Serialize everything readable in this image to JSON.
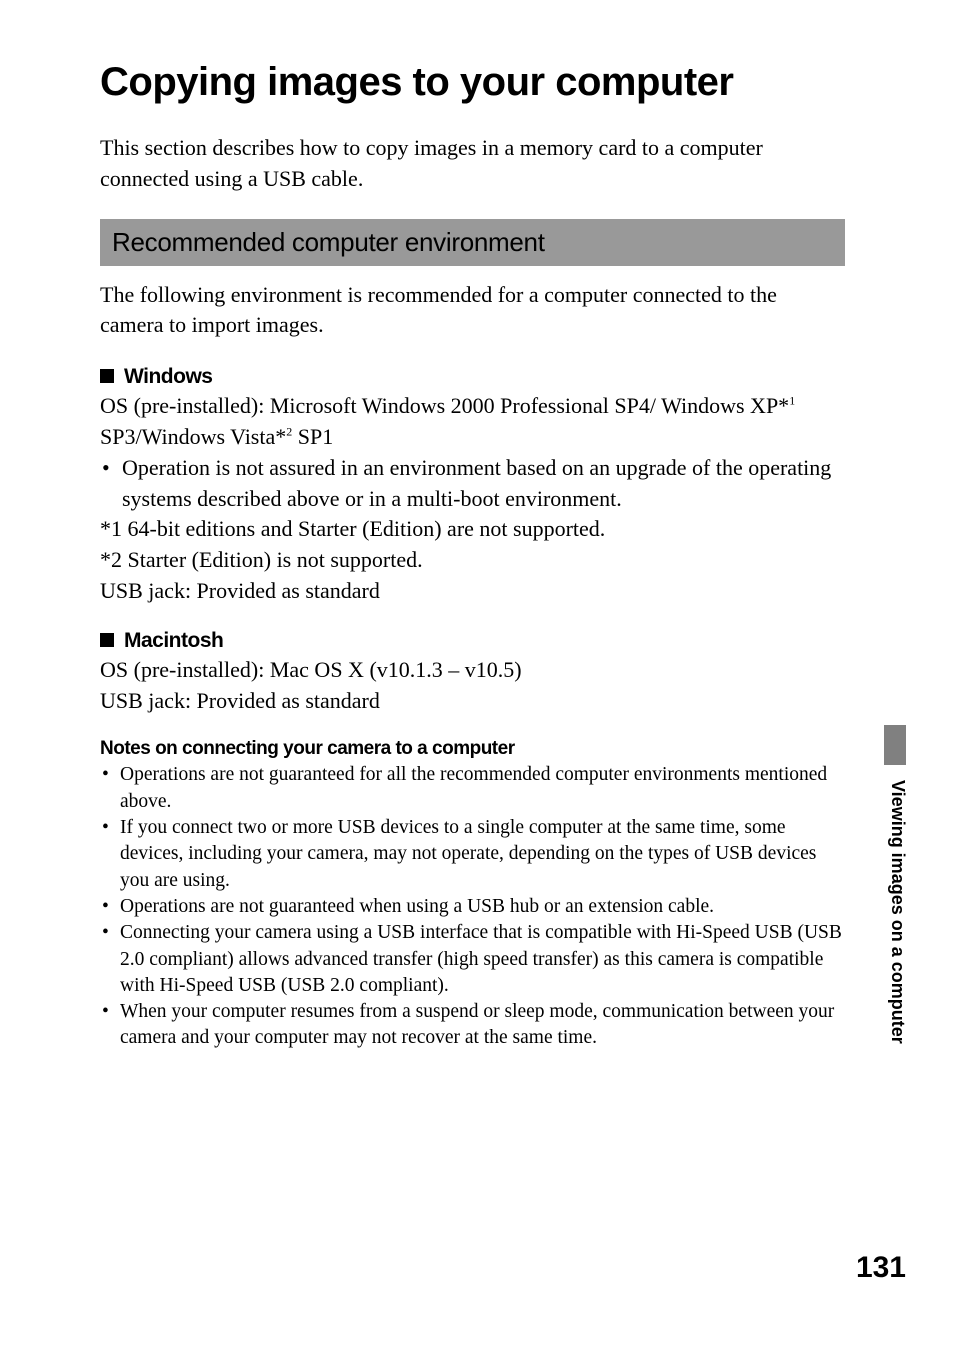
{
  "page": {
    "title": "Copying images to your computer",
    "intro": "This section describes how to copy images in a memory card to a computer connected using a USB cable.",
    "number": "131",
    "side_label": "Viewing images on a computer"
  },
  "section": {
    "heading": "Recommended computer environment",
    "intro": "The following environment is recommended for a computer connected to the camera to import images."
  },
  "windows": {
    "heading": "Windows",
    "os_label": "OS (pre-installed): Microsoft Windows 2000 Professional SP4/ Windows XP*",
    "sup1": "1",
    "os_mid": " SP3/Windows Vista*",
    "sup2": "2",
    "os_end": " SP1",
    "bullet1": "Operation is not assured in an environment based on an upgrade of the operating systems described above or in a multi-boot environment.",
    "footnote1": "*1  64-bit editions and Starter (Edition) are not supported.",
    "footnote2": "*2  Starter (Edition) is not supported.",
    "usb": "USB jack: Provided as standard"
  },
  "macintosh": {
    "heading": "Macintosh",
    "os": "OS (pre-installed): Mac OS X (v10.1.3 – v10.5)",
    "usb": "USB jack: Provided as standard"
  },
  "notes": {
    "heading": "Notes on connecting your camera to a computer",
    "items": [
      "Operations are not guaranteed for all the recommended computer environments mentioned above.",
      "If you connect two or more USB devices to a single computer at the same time, some devices, including your camera, may not operate, depending on the types of USB devices you are using.",
      "Operations are not guaranteed when using a USB hub or an extension cable.",
      "Connecting your camera using a USB interface that is compatible with Hi-Speed USB (USB 2.0 compliant) allows advanced transfer (high speed transfer) as this camera is compatible with Hi-Speed USB (USB 2.0 compliant).",
      "When your computer resumes from a suspend or sleep mode, communication between your camera and your computer may not recover at the same time."
    ]
  }
}
